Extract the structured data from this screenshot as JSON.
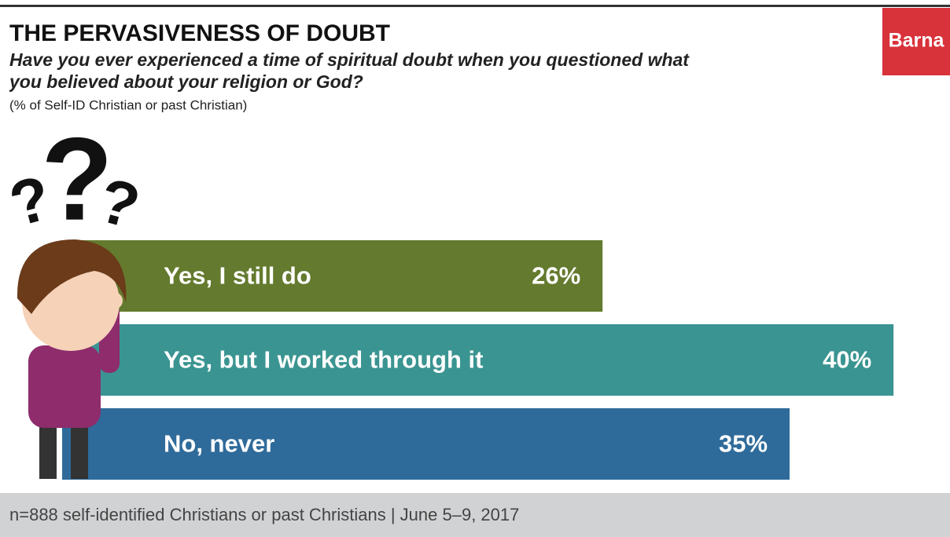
{
  "brand": "Barna",
  "chart_data": {
    "type": "bar",
    "orientation": "horizontal",
    "title": "THE PERVASIVENESS OF DOUBT",
    "subtitle": "Have you ever experienced a time of spiritual doubt when you questioned what you believed about your religion or God?",
    "note": "(% of Self-ID  Christian or past Christian)",
    "categories": [
      "Yes, I still do",
      "Yes, but I worked through it",
      "No, never"
    ],
    "values": [
      26,
      40,
      35
    ],
    "value_labels": [
      "26%",
      "40%",
      "35%"
    ],
    "colors": [
      "#647a2e",
      "#3a9491",
      "#2f6b9a"
    ],
    "source": "n=888 self-identified Christians or past Christians | June 5–9, 2017"
  }
}
